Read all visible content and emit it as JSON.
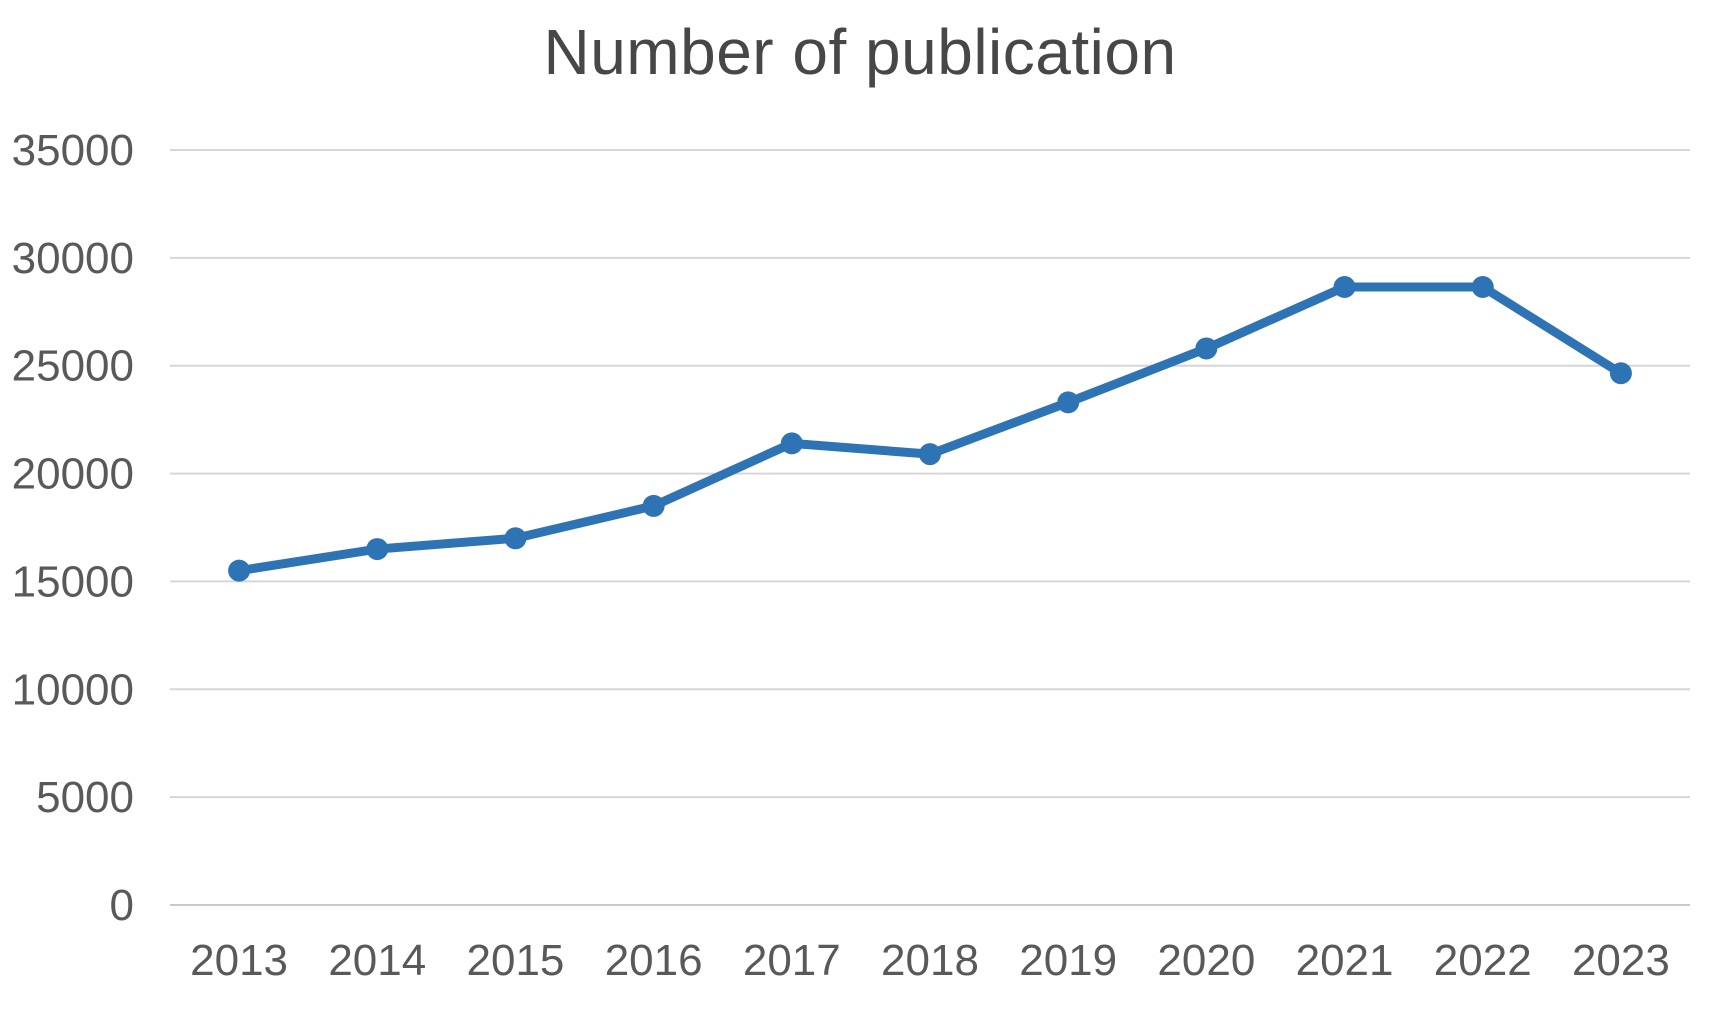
{
  "chart_data": {
    "type": "line",
    "title": "Number of publication",
    "categories": [
      "2013",
      "2014",
      "2015",
      "2016",
      "2017",
      "2018",
      "2019",
      "2020",
      "2021",
      "2022",
      "2023"
    ],
    "series": [
      {
        "name": "Number of publication",
        "values": [
          15500,
          16500,
          17000,
          18500,
          21400,
          20900,
          23300,
          25800,
          28650,
          28650,
          24650
        ]
      }
    ],
    "xlabel": "",
    "ylabel": "",
    "ylim": [
      0,
      35000
    ],
    "ytick_step": 5000,
    "yticks": [
      0,
      5000,
      10000,
      15000,
      20000,
      25000,
      30000,
      35000
    ],
    "grid": true,
    "legend_position": "none",
    "marker": "circle",
    "colors": {
      "line": "#2e74b5",
      "marker": "#2e74b5",
      "gridline": "#d6d6d6",
      "axis_baseline": "#c9c9c9",
      "tick_label": "#595959",
      "title": "#474747",
      "background": "#ffffff"
    }
  }
}
